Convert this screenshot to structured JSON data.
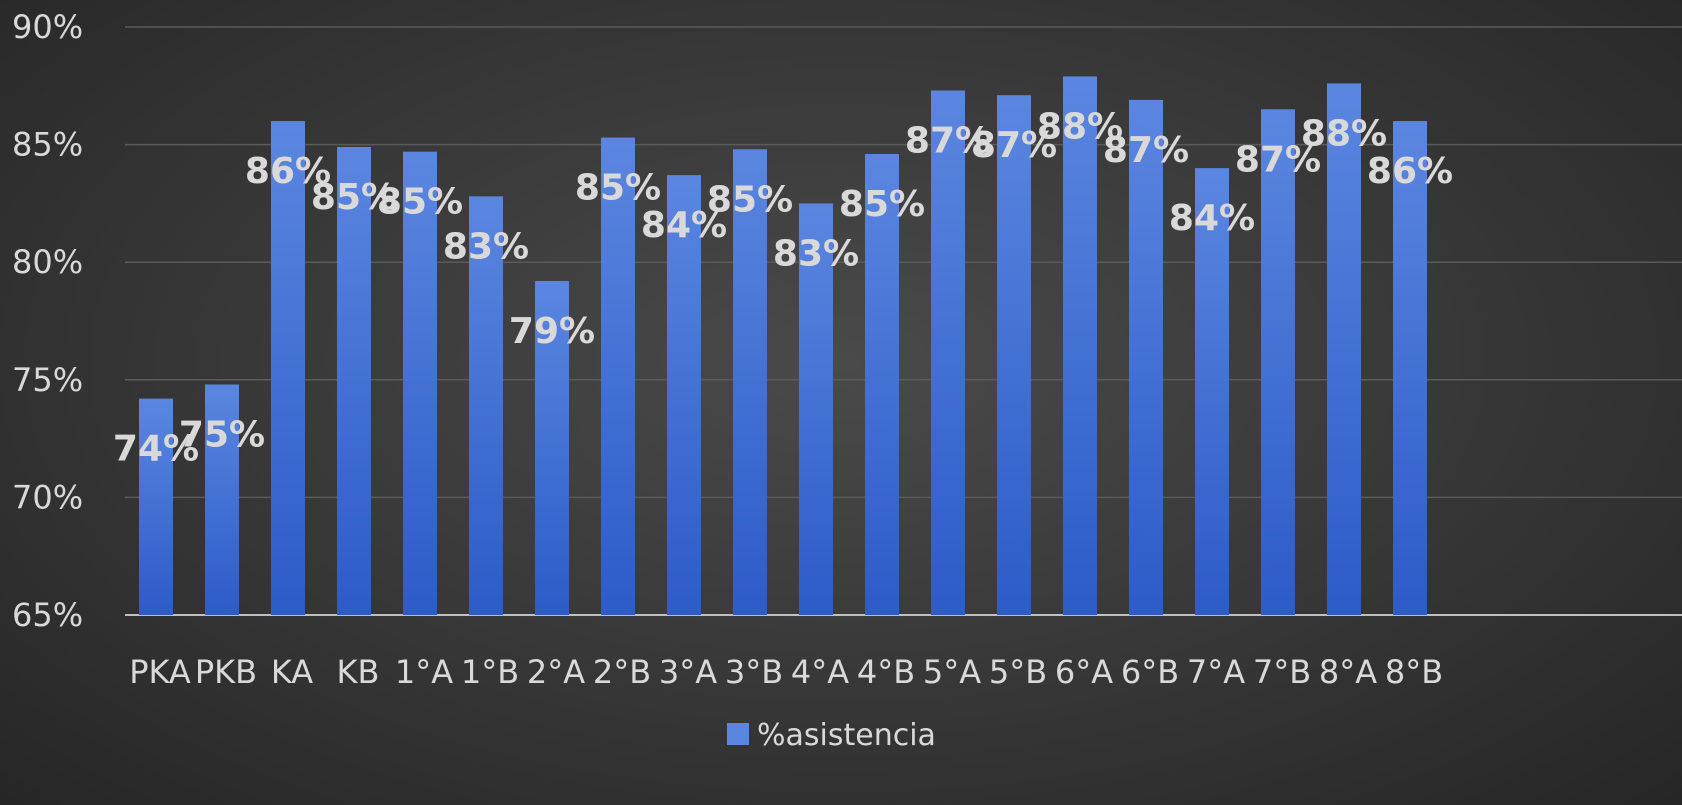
{
  "chart_data": {
    "type": "bar",
    "categories": [
      "PKA",
      "PKB",
      "KA",
      "KB",
      "1°A",
      "1°B",
      "2°A",
      "2°B",
      "3°A",
      "3°B",
      "4°A",
      "4°B",
      "5°A",
      "5°B",
      "6°A",
      "6°B",
      "7°A",
      "7°B",
      "8°A",
      "8°B"
    ],
    "series": [
      {
        "name": "%asistencia",
        "values": [
          74.2,
          74.8,
          86.0,
          84.9,
          84.7,
          82.8,
          79.2,
          85.3,
          83.7,
          84.8,
          82.5,
          84.6,
          87.3,
          87.1,
          87.9,
          86.9,
          84.0,
          86.5,
          87.6,
          86.0
        ],
        "labels": [
          "74%",
          "75%",
          "86%",
          "85%",
          "85%",
          "83%",
          "79%",
          "85%",
          "84%",
          "85%",
          "83%",
          "85%",
          "87%",
          "87%",
          "88%",
          "87%",
          "84%",
          "87%",
          "88%",
          "86%"
        ]
      }
    ],
    "ylim": [
      65,
      90
    ],
    "yticks": [
      65,
      70,
      75,
      80,
      85,
      90
    ],
    "ytick_labels": [
      "65%",
      "70%",
      "75%",
      "80%",
      "85%",
      "90%"
    ],
    "grid": true,
    "legend_position": "bottom",
    "colors": {
      "bar_top": "#5b86e0",
      "bar_bottom": "#2d5bc8",
      "grid": "#5a5a5a",
      "text": "#d9d9d9"
    }
  }
}
